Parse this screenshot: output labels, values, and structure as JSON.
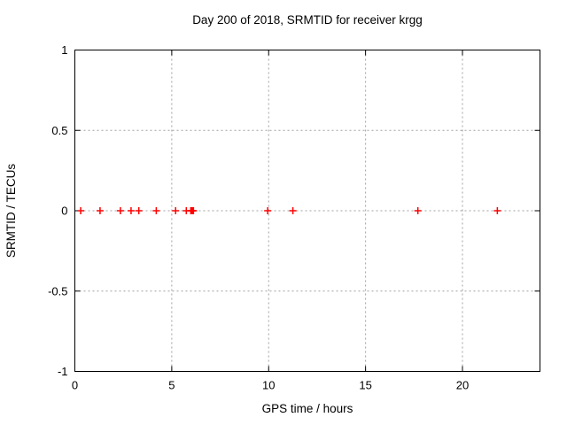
{
  "window": {
    "background_color": "#ffffff"
  },
  "chart_data": {
    "type": "scatter",
    "title": "Day 200 of 2018, SRMTID for receiver krgg",
    "xlabel": "GPS time / hours",
    "ylabel": "SRMTID / TECUs",
    "xlim": [
      0,
      24
    ],
    "ylim": [
      -1,
      1
    ],
    "xticks": [
      0,
      5,
      10,
      15,
      20
    ],
    "yticks": [
      -1,
      -0.5,
      0,
      0.5,
      1
    ],
    "grid": true,
    "legend": "none",
    "marker": "plus",
    "colors": {
      "marker": "#ff0000",
      "grid": "#a0a0a0",
      "axis": "#000000",
      "text": "#000000",
      "background": "#ffffff"
    },
    "series": [
      {
        "name": "SRMTID",
        "x": [
          0.3,
          1.3,
          2.35,
          2.9,
          3.3,
          4.2,
          5.2,
          5.75,
          5.98,
          6.03,
          6.07,
          6.12,
          9.95,
          11.25,
          17.7,
          21.8
        ],
        "y": [
          0,
          0,
          0,
          0,
          0,
          0,
          0,
          0,
          0,
          0,
          0,
          0,
          0,
          0,
          0,
          0
        ]
      }
    ]
  }
}
